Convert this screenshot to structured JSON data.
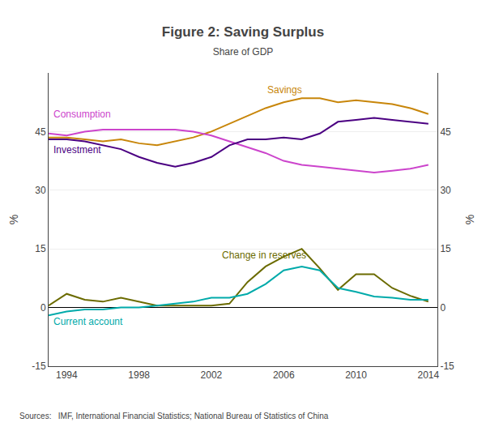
{
  "chart_data": {
    "type": "line",
    "title": "Figure 2: Saving Surplus",
    "subtitle": "Share of GDP",
    "source": "Sources:   IMF, International Financial Statistics; National Bureau of Statistics of China",
    "ylabel": "%",
    "y2label": "%",
    "x": [
      1993,
      1994,
      1995,
      1996,
      1997,
      1998,
      1999,
      2000,
      2001,
      2002,
      2003,
      2004,
      2005,
      2006,
      2007,
      2008,
      2009,
      2010,
      2011,
      2012,
      2013,
      2014
    ],
    "series": [
      {
        "color": "#c8860a",
        "values": [
          43.5,
          43.5,
          43.0,
          42.5,
          43.0,
          42.0,
          41.5,
          42.5,
          43.5,
          45.0,
          47.0,
          49.0,
          51.0,
          52.5,
          53.5,
          53.5,
          52.5,
          53.0,
          52.5,
          52.0,
          51.0,
          49.5
        ]
      },
      {
        "color": "#cc44cc",
        "values": [
          44.5,
          44.0,
          45.0,
          45.5,
          45.5,
          45.5,
          45.5,
          45.5,
          45.0,
          44.0,
          42.5,
          41.0,
          39.5,
          37.5,
          36.5,
          36.0,
          35.5,
          35.0,
          34.5,
          35.0,
          35.5,
          36.5
        ]
      },
      {
        "color": "#4b0082",
        "values": [
          43.0,
          43.0,
          42.5,
          41.5,
          40.5,
          38.5,
          37.0,
          36.0,
          37.0,
          38.5,
          41.5,
          43.0,
          43.0,
          43.5,
          43.0,
          44.5,
          47.5,
          48.0,
          48.5,
          48.0,
          47.5,
          47.0
        ]
      },
      {
        "color": "#6b6b00",
        "values": [
          0.5,
          3.5,
          2.0,
          1.5,
          2.5,
          1.5,
          0.5,
          0.5,
          0.5,
          0.5,
          1.0,
          6.5,
          10.5,
          13.0,
          15.0,
          10.0,
          4.5,
          8.5,
          8.5,
          5.0,
          3.0,
          1.5
        ]
      },
      {
        "color": "#00aaaa",
        "values": [
          -2.0,
          -1.0,
          -0.5,
          -0.5,
          0.0,
          0.0,
          0.5,
          1.0,
          1.5,
          2.5,
          2.5,
          3.5,
          6.0,
          9.5,
          10.5,
          9.5,
          5.0,
          4.0,
          2.8,
          2.5,
          2.0,
          2.0
        ]
      }
    ],
    "annotations": [
      {
        "text": "Savings",
        "x": 2005.0,
        "y": 53.8,
        "color": "#c8860a"
      },
      {
        "text": "Consumption",
        "x": 1993.2,
        "y": 47.5,
        "color": "#cc44cc"
      },
      {
        "text": "Investment",
        "x": 1993.2,
        "y": 38.5,
        "color": "#4b0082"
      },
      {
        "text": "Change in reserves",
        "x": 2002.5,
        "y": 11.5,
        "color": "#6b6b00"
      },
      {
        "text": "Current account",
        "x": 1993.2,
        "y": -5.5,
        "color": "#00aaaa"
      }
    ],
    "xlim": [
      1993.0,
      2014.5
    ],
    "xticks": [
      1994,
      1998,
      2002,
      2006,
      2010,
      2014
    ],
    "ylim": [
      -15,
      60
    ],
    "yticks": [
      -15,
      0,
      15,
      30,
      45
    ],
    "y2lim": [
      -15,
      60
    ],
    "y2ticks": [
      -15,
      0,
      15,
      30,
      45
    ],
    "grid": true
  }
}
